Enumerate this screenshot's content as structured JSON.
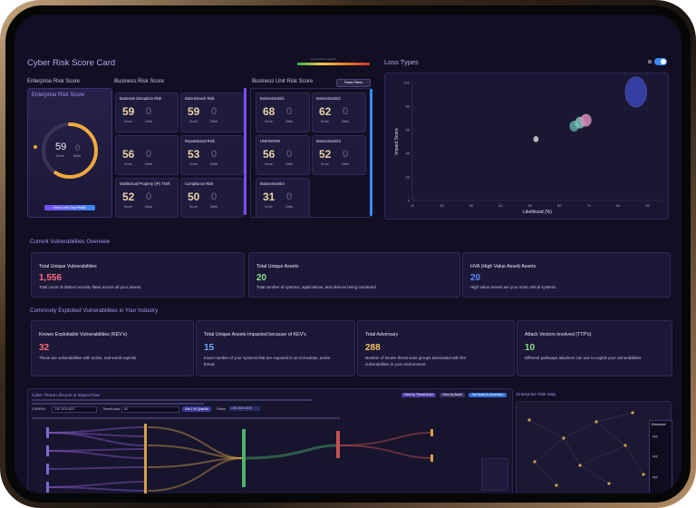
{
  "header": {
    "title": "Cyber Risk Score Card",
    "legend_label": "Loss Scores Legend"
  },
  "enterprise": {
    "section": "Enterprise Risk Score",
    "card_title": "Enterprise Risk Score",
    "score": "59",
    "zero": "0",
    "score_lbl": "Score",
    "delta_lbl": "Delta",
    "button": "View in the Gap PhilaD",
    "gauge_fraction": 0.59
  },
  "business": {
    "section": "Business Risk Score",
    "cards": [
      {
        "title": "Business Disruption Risk",
        "score": "59",
        "delta": "0"
      },
      {
        "title": "Data Breach Risk",
        "score": "59",
        "delta": "0"
      },
      {
        "title": "",
        "score": "56",
        "delta": "0"
      },
      {
        "title": "Reputational Risk",
        "score": "53",
        "delta": "0"
      },
      {
        "title": "Intellectual Property (IP) Theft",
        "score": "52",
        "delta": "0"
      },
      {
        "title": "Compliance Risk",
        "score": "50",
        "delta": "0"
      }
    ]
  },
  "unit": {
    "section": "Business Unit Risk Score",
    "reset": "Reset Filters",
    "cards": [
      {
        "title": "BusinessUnit1",
        "score": "68",
        "delta": "0"
      },
      {
        "title": "BusinessUnit2",
        "score": "62",
        "delta": "0"
      },
      {
        "title": "UNKNOWN",
        "score": "56",
        "delta": "0"
      },
      {
        "title": "BusinessUnit3",
        "score": "52",
        "delta": "0"
      },
      {
        "title": "BusinessUnit4",
        "score": "31",
        "delta": "0"
      }
    ]
  },
  "labels": {
    "score": "Score",
    "delta": "Delta"
  },
  "loss": {
    "title": "Loss Types"
  },
  "chart_data": {
    "type": "scatter",
    "title": "Loss Types",
    "xlabel": "Likelihood (%)",
    "ylabel": "Impact Score",
    "xlim": [
      10,
      95
    ],
    "ylim": [
      0,
      100
    ],
    "x_ticks": [
      "10",
      "20",
      "30",
      "40",
      "50",
      "60",
      "70",
      "80",
      "90"
    ],
    "y_ticks": [
      "0",
      "20",
      "40",
      "60",
      "80",
      "100"
    ],
    "points": [
      {
        "x": 52,
        "y": 52,
        "r": 2.8,
        "color": "#d9d4cf"
      },
      {
        "x": 65,
        "y": 63,
        "r": 5,
        "color": "#59a89c"
      },
      {
        "x": 67,
        "y": 66,
        "r": 5.5,
        "color": "#7fc3b9"
      },
      {
        "x": 69,
        "y": 68,
        "r": 6,
        "color": "#d98bb8"
      },
      {
        "x": 86,
        "y": 92,
        "r": 12,
        "color": "#3a46b8"
      }
    ]
  },
  "vuln": {
    "section": "Current Vulnerabilities Overview",
    "cards": [
      {
        "title": "Total Unique Vulnerabilities",
        "value": "1,556",
        "desc": "Total count of distinct security flaws across all your assets.",
        "color": "#ff6a7a"
      },
      {
        "title": "Total Unique Assets",
        "value": "20",
        "desc": "Total number of systems, applications, and devices being monitored.",
        "color": "#86e08c"
      },
      {
        "title": "HVA (High Value Asset) Assets",
        "value": "20",
        "desc": "High Value Assets are your most critical systems.",
        "color": "#5b8cff"
      }
    ]
  },
  "kev": {
    "section": "Commonly Exploited Vulnerabilities in Your Industry",
    "cards": [
      {
        "title": "Known Exploitable Vulnerabilities (KEV's)",
        "value": "32",
        "desc": "These are vulnerabilities with active, real-world exploits.",
        "desc2": "",
        "color": "#ff6a7a"
      },
      {
        "title": "Total Unique Assets Impacted because of KEV's",
        "value": "15",
        "desc": "Exact number of your systems that are exposed to an immediate, active",
        "desc2": "threat.",
        "color": "#6fa8ff"
      },
      {
        "title": "Total Adversary",
        "value": "288",
        "desc": "Number of known threat actor groups associated with the",
        "desc2": "vulnerabilities in your environment.",
        "color": "#f2c25c"
      },
      {
        "title": "Attack Vectors involved (TTP's)",
        "value": "10",
        "desc": "Different pathways attackers can use to exploit your vulnerabilities.",
        "desc2": "",
        "color": "#86e08c"
      }
    ]
  },
  "cyber": {
    "title": "Cyber Threat Lifecycle & Impact Flow",
    "buttons": [
      "View by Threat Actor",
      "View by Asset",
      "Set Asset & Adversary"
    ],
    "cve_label": "CVE/KEV",
    "cve_value": "CVE-2020-0027",
    "actor_label": "Threat Actor",
    "actor_value": "All",
    "filters_label": "Filters",
    "filter_btn": "Get 1 Hi Quartile",
    "filters_value": "CVE-2020-0019"
  },
  "map": {
    "title": "Enterprise Risk Map",
    "col": "Enterprise",
    "rows": [
      "app",
      "app",
      "app"
    ]
  }
}
